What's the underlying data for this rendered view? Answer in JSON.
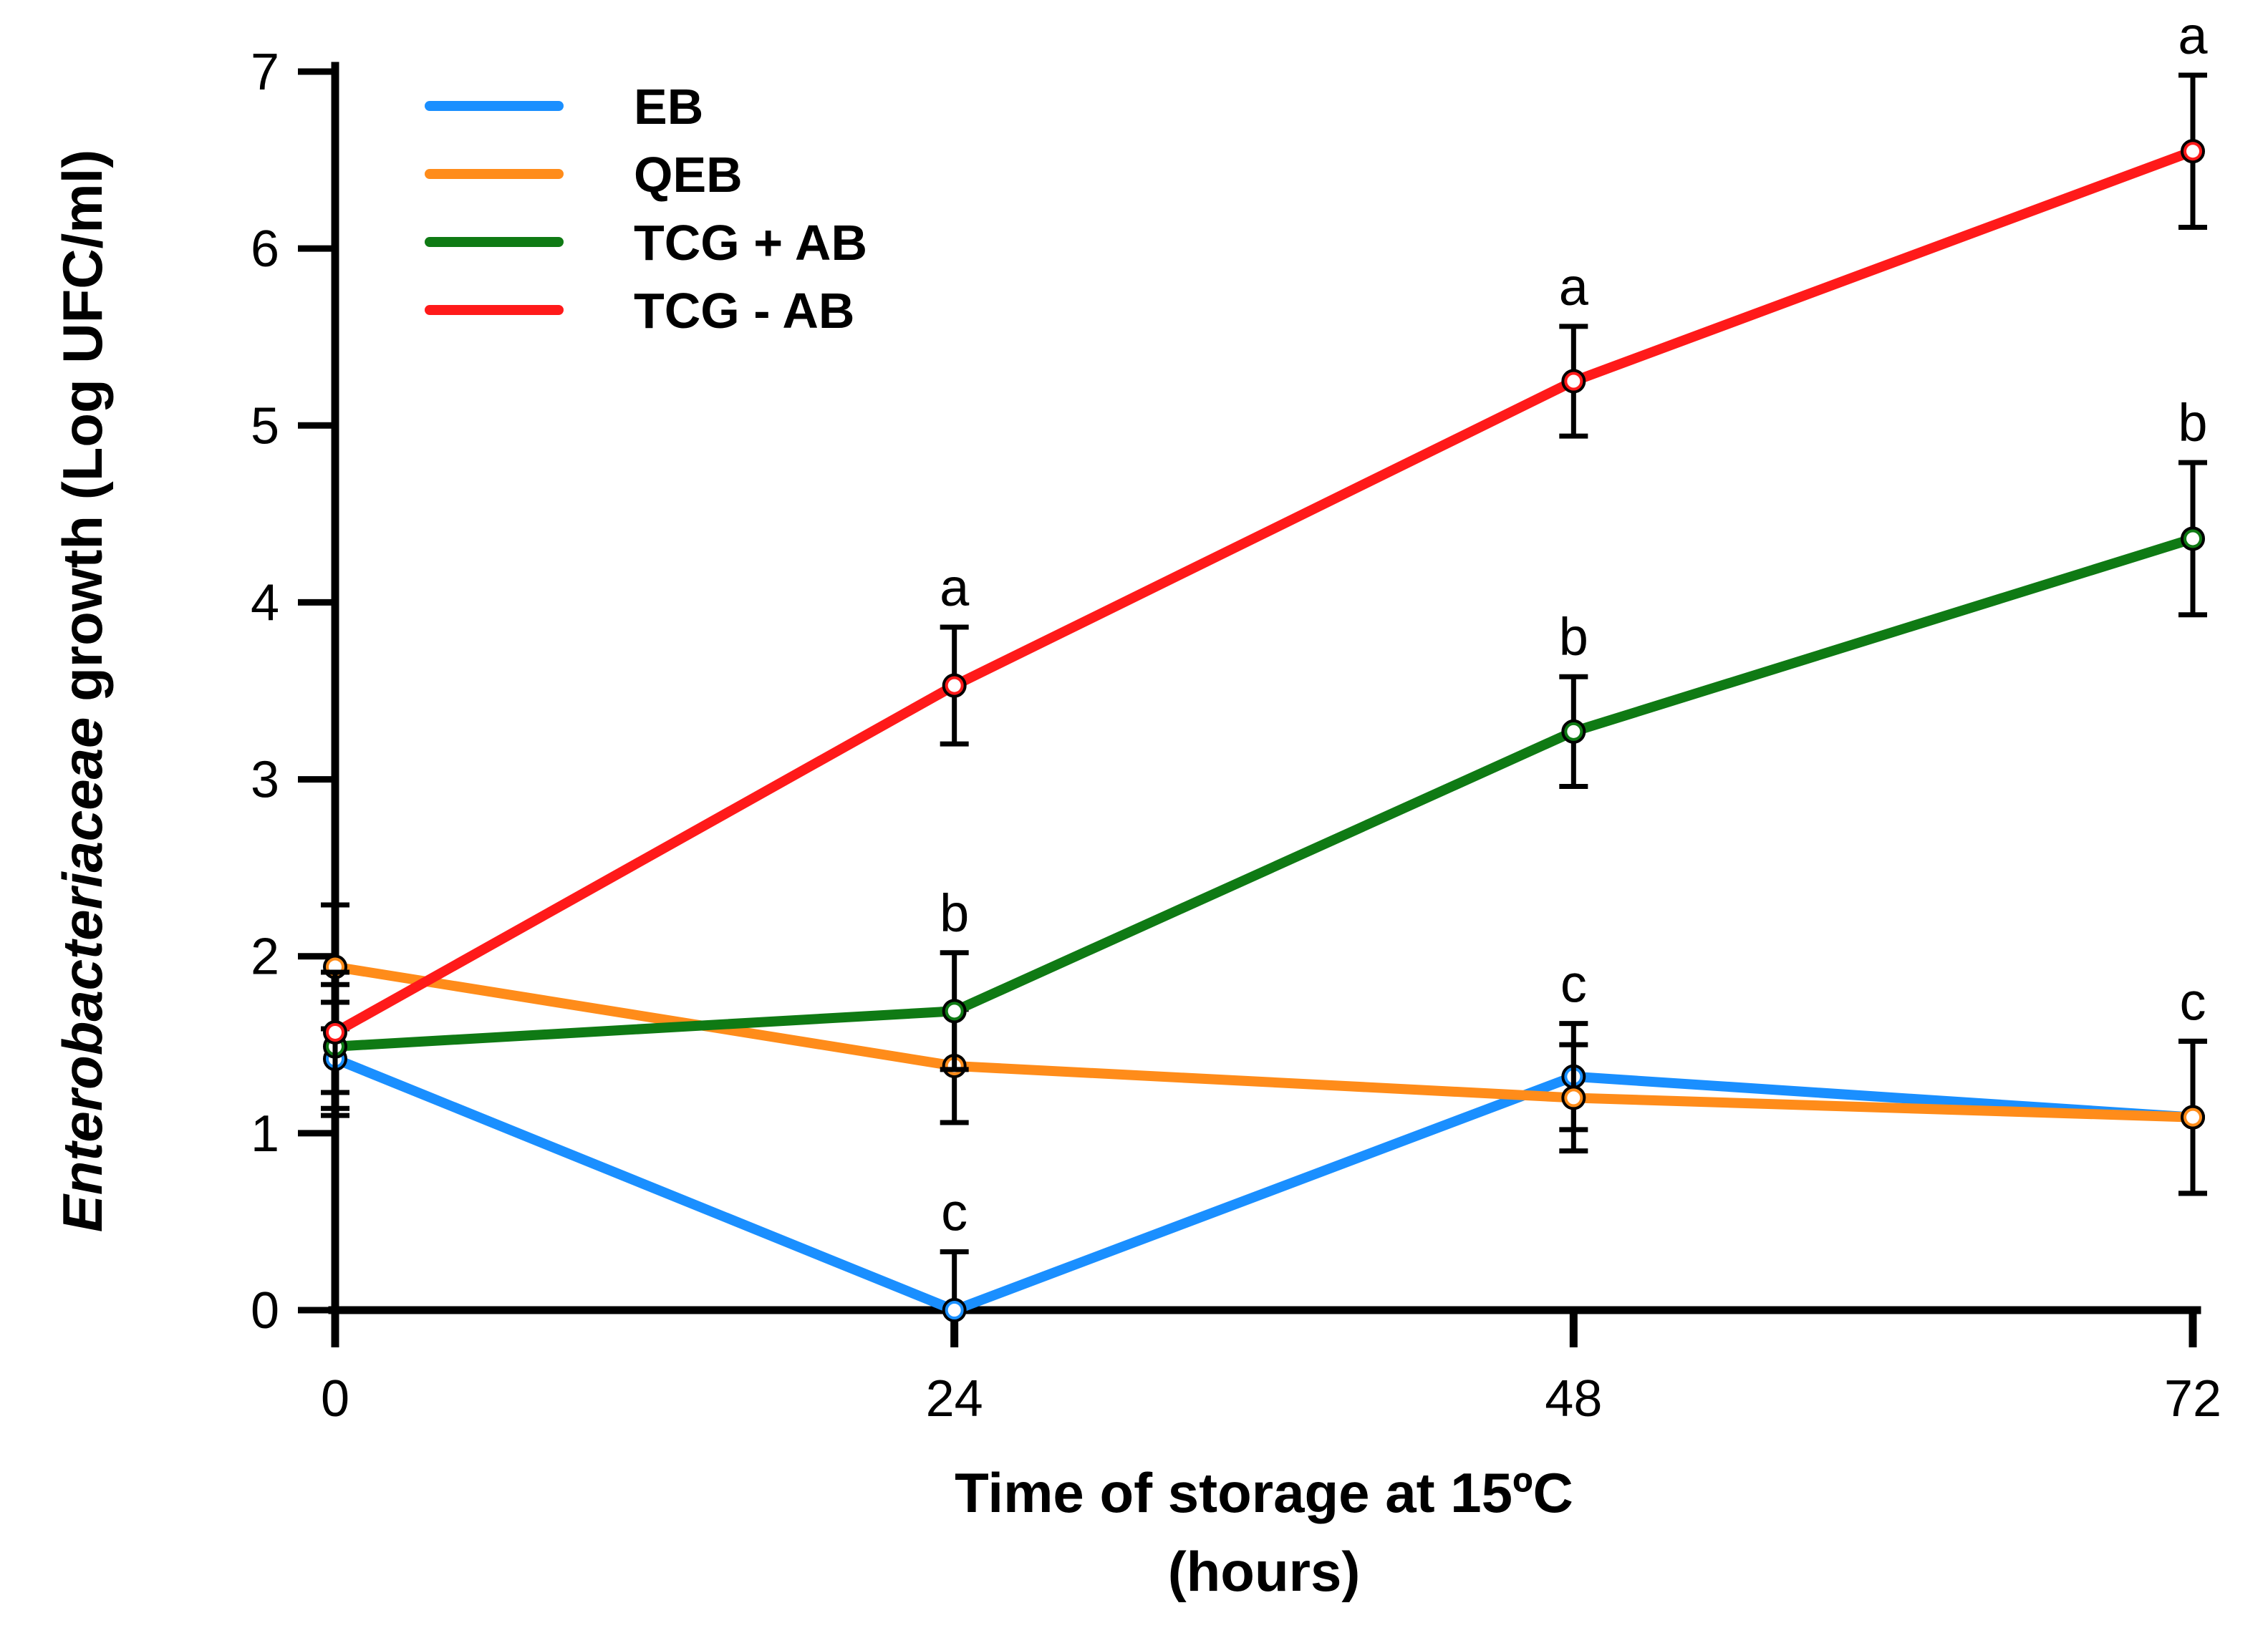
{
  "chart_data": {
    "type": "line",
    "title": "",
    "xlabel": "Time of storage at 15ºC",
    "xlabel_line2": "(hours)",
    "ylabel_italic": "Enterobacteriaceae",
    "ylabel_rest": " growth (Log UFC/ml)",
    "x": [
      0,
      24,
      48,
      72
    ],
    "xlim": [
      0,
      72
    ],
    "ylim": [
      0,
      7
    ],
    "x_ticks": [
      "0",
      "24",
      "48",
      "72"
    ],
    "y_ticks": [
      "0",
      "1",
      "2",
      "3",
      "4",
      "5",
      "6",
      "7"
    ],
    "legend_position": "top-left",
    "series": [
      {
        "name": "EB",
        "color": "#1a8fff",
        "values": [
          1.42,
          0.0,
          1.32,
          1.09
        ],
        "errors": [
          0.32,
          0.33,
          0.3,
          0.43
        ],
        "letters": [
          "",
          "c",
          "c",
          "c"
        ]
      },
      {
        "name": "QEB",
        "color": "#ff8c1a",
        "values": [
          1.94,
          1.38,
          1.2,
          1.09
        ],
        "errors": [
          0.35,
          0.32,
          0.3,
          0.43
        ],
        "letters": [
          "",
          "",
          "",
          ""
        ]
      },
      {
        "name": "TCG + AB",
        "color": "#0f7a14",
        "values": [
          1.49,
          1.69,
          3.27,
          4.36
        ],
        "errors": [
          0.35,
          0.33,
          0.31,
          0.43
        ],
        "letters": [
          "",
          "b",
          "b",
          "b"
        ]
      },
      {
        "name": "TCG - AB",
        "color": "#ff1a1a",
        "values": [
          1.57,
          3.53,
          5.25,
          6.55
        ],
        "errors": [
          0.34,
          0.33,
          0.31,
          0.43
        ],
        "letters": [
          "",
          "a",
          "a",
          "a"
        ]
      }
    ]
  }
}
